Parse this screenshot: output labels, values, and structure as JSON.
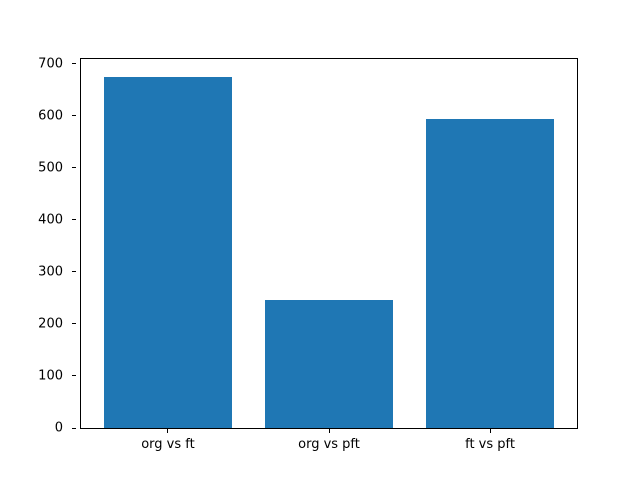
{
  "figure": {
    "background": "#ffffff",
    "axes_edge_color": "#000000",
    "text_color": "#000000"
  },
  "chart_data": {
    "type": "bar",
    "title": "",
    "xlabel": "",
    "ylabel": "",
    "categories": [
      "org vs ft",
      "org vs pft",
      "ft vs pft"
    ],
    "values": [
      675,
      246,
      594
    ],
    "bar_color": "#1f77b4",
    "bar_width": 0.8,
    "yticks": [
      0,
      100,
      200,
      300,
      400,
      500,
      600,
      700
    ],
    "ylim": [
      0,
      708.75
    ],
    "xlim": [
      -0.54,
      2.54
    ],
    "grid": false,
    "legend": null
  }
}
